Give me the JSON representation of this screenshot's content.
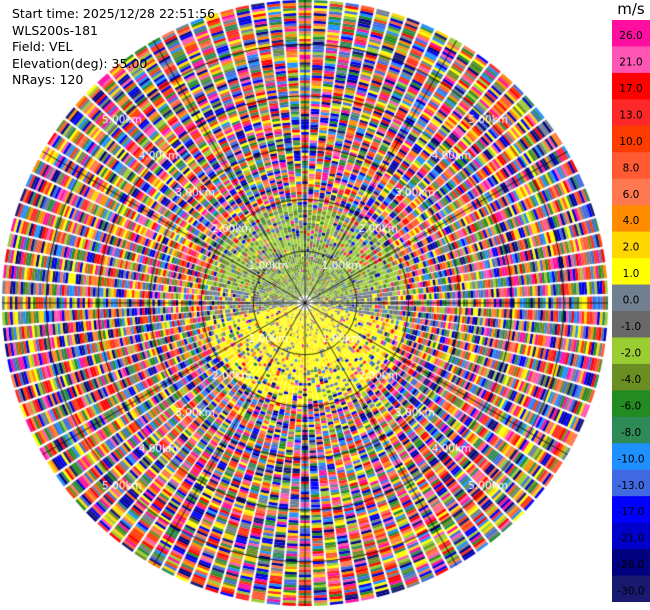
{
  "info": {
    "start_time": "Start time: 2025/12/28 22:51:56",
    "site": "WLS200s-181",
    "field": "Field: VEL",
    "elevation": "Elevation(deg): 35.00",
    "nrays": "NRays: 120"
  },
  "colorbar": {
    "unit": "m/s",
    "labels": [
      "26.0",
      "21.0",
      "17.0",
      "13.0",
      "10.0",
      "8.0",
      "6.0",
      "4.0",
      "2.0",
      "1.0",
      "0.0",
      "-1.0",
      "-2.0",
      "-4.0",
      "-6.0",
      "-8.0",
      "-10.0",
      "-13.0",
      "-17.0",
      "-21.0",
      "-26.0",
      "-30.0"
    ],
    "colors": [
      "#ff0fa0",
      "#ff55b4",
      "#ff0000",
      "#ff2828",
      "#ff3c00",
      "#ff5a32",
      "#ff7850",
      "#ff8c00",
      "#ffd700",
      "#ffff00",
      "#708090",
      "#696969",
      "#9acd32",
      "#6b8e23",
      "#228b22",
      "#2e8b57",
      "#1e90ff",
      "#4169e1",
      "#0000ff",
      "#0000cd",
      "#000080",
      "#191970"
    ]
  },
  "chart_data": {
    "type": "heatmap",
    "projection": "polar PPI (plan position indicator)",
    "field": "VEL",
    "units": "m/s",
    "elevation_deg": 35.0,
    "n_rays": 120,
    "range_rings_km": [
      1.0,
      2.0,
      3.0,
      4.0,
      5.0
    ],
    "range_ring_labels": [
      "1.00km",
      "2.00km",
      "3.00km",
      "4.00km",
      "5.00km"
    ],
    "max_range_km": 5.85,
    "spokes_deg": [
      0,
      30,
      60,
      90,
      120,
      150,
      180,
      210,
      240,
      270,
      300,
      330
    ],
    "color_scale_min": -30,
    "color_scale_max": 30,
    "pattern": "Near field (< ~2 km) shows coherent radial velocities: about -1 to -4 m/s (green/olive) toward the north and about +1 to +4 m/s (yellow) toward the south; beyond ~2 km the field is noise spanning the full color scale."
  }
}
